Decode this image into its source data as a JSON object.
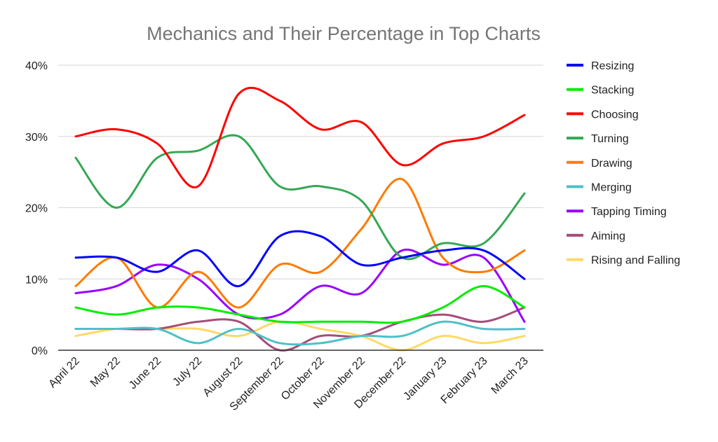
{
  "chart_data": {
    "type": "line",
    "title": "Mechanics and Their Percentage in Top Charts",
    "xlabel": "",
    "ylabel": "",
    "ylim": [
      0,
      40
    ],
    "yticks": [
      "0%",
      "10%",
      "20%",
      "30%",
      "40%"
    ],
    "ytick_values": [
      0,
      10,
      20,
      30,
      40
    ],
    "grid": true,
    "legend_position": "right",
    "smooth": true,
    "categories": [
      "April 22",
      "May 22",
      "June 22",
      "July 22",
      "August 22",
      "September 22",
      "October 22",
      "November 22",
      "December 22",
      "January 23",
      "February 23",
      "March 23"
    ],
    "series": [
      {
        "name": "Resizing",
        "color": "#0000ff",
        "values": [
          13,
          13,
          11,
          14,
          9,
          16,
          16,
          12,
          13,
          14,
          14,
          10
        ]
      },
      {
        "name": "Stacking",
        "color": "#00ee00",
        "values": [
          6,
          5,
          6,
          6,
          5,
          4,
          4,
          4,
          4,
          6,
          9,
          6
        ]
      },
      {
        "name": "Choosing",
        "color": "#ff0000",
        "values": [
          30,
          31,
          29,
          23,
          36,
          35,
          31,
          32,
          26,
          29,
          30,
          33
        ]
      },
      {
        "name": "Turning",
        "color": "#34a853",
        "values": [
          27,
          20,
          27,
          28,
          30,
          23,
          23,
          21,
          13,
          15,
          15,
          22
        ]
      },
      {
        "name": "Drawing",
        "color": "#ff7a00",
        "values": [
          9,
          13,
          6,
          11,
          6,
          12,
          11,
          17,
          24,
          13,
          11,
          14
        ]
      },
      {
        "name": "Merging",
        "color": "#4ec0c8",
        "values": [
          3,
          3,
          3,
          1,
          3,
          1,
          1,
          2,
          2,
          4,
          3,
          3
        ]
      },
      {
        "name": "Tapping Timing",
        "color": "#9900ff",
        "values": [
          8,
          9,
          12,
          10,
          5,
          5,
          9,
          8,
          14,
          12,
          13,
          4
        ]
      },
      {
        "name": "Aiming",
        "color": "#a64d79",
        "values": [
          3,
          3,
          3,
          4,
          4,
          0,
          2,
          2,
          4,
          5,
          4,
          6
        ]
      },
      {
        "name": "Rising and Falling",
        "color": "#ffd966",
        "values": [
          2,
          3,
          3,
          3,
          2,
          4,
          3,
          2,
          0,
          2,
          1,
          2
        ]
      }
    ]
  }
}
